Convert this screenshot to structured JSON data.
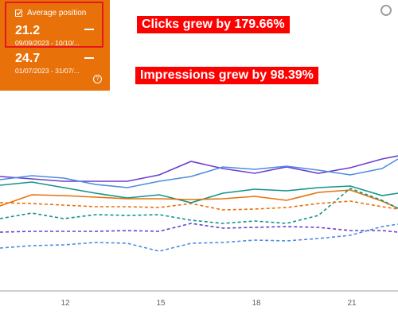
{
  "metric_card": {
    "label": "Average position",
    "current_value": "21.2",
    "current_range": "09/09/2023 - 10/10/...",
    "previous_value": "24.7",
    "previous_range": "01/07/2023 - 31/07/...",
    "help_glyph": "?",
    "background": "#e8710a",
    "highlight_color": "#e8161f"
  },
  "annotations": {
    "clicks": "Clicks grew by 179.66%",
    "impressions": "Impressions grew by 98.39%",
    "color": "#ff0000"
  },
  "chart": {
    "x_ticks": [
      "12",
      "15",
      "18",
      "21"
    ]
  },
  "colors": {
    "purple": "#6b3fd1",
    "blue": "#4c8ddf",
    "teal": "#129587",
    "orange": "#e8710a",
    "axis": "#9aa0a6"
  },
  "icons": {
    "checkbox": "checkbox-checked-icon",
    "help": "help-icon",
    "corner": "circle-icon"
  }
}
